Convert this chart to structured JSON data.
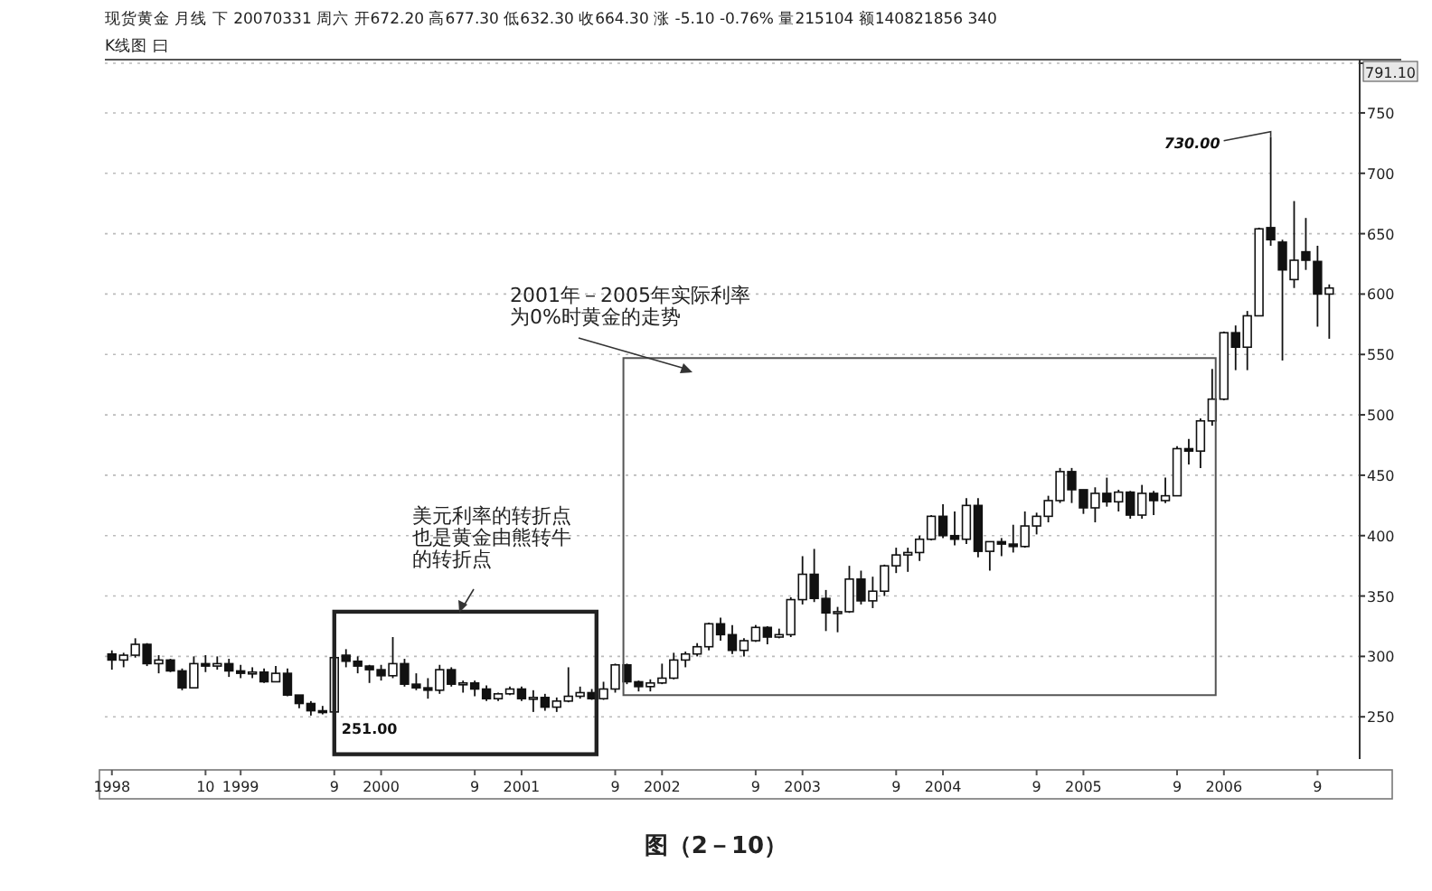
{
  "chart_data": {
    "type": "candlestick",
    "title": "现货黄金 月线 下 20070331 周六 开672.20 高677.30 低632.30 收664.30 涨 -5.10 -0.76% 量215104 额140821856 340",
    "subtitle": "K线图 曰",
    "categories": [
      "1998",
      null,
      null,
      null,
      null,
      null,
      null,
      null,
      "10",
      null,
      null,
      "1999",
      null,
      null,
      null,
      null,
      null,
      null,
      null,
      "9",
      null,
      null,
      null,
      "2000",
      null,
      null,
      null,
      null,
      null,
      null,
      null,
      "9",
      null,
      null,
      null,
      "2001",
      null,
      null,
      null,
      null,
      null,
      null,
      null,
      "9",
      null,
      null,
      null,
      "2002",
      null,
      null,
      null,
      null,
      null,
      null,
      null,
      "9",
      null,
      null,
      null,
      "2003",
      null,
      null,
      null,
      null,
      null,
      null,
      null,
      "9",
      null,
      null,
      null,
      "2004",
      null,
      null,
      null,
      null,
      null,
      null,
      null,
      "9",
      null,
      null,
      null,
      "2005",
      null,
      null,
      null,
      null,
      null,
      null,
      null,
      "9",
      null,
      null,
      null,
      "2006",
      null,
      null,
      null,
      null,
      null,
      null,
      null,
      "9",
      null
    ],
    "ohlc": [
      [
        302,
        305,
        289,
        297
      ],
      [
        297,
        303,
        291,
        301
      ],
      [
        301,
        315,
        299,
        310
      ],
      [
        310,
        311,
        292,
        294
      ],
      [
        294,
        301,
        286,
        297
      ],
      [
        297,
        298,
        287,
        288
      ],
      [
        288,
        290,
        272,
        274
      ],
      [
        274,
        300,
        274,
        294
      ],
      [
        294,
        301,
        287,
        292
      ],
      [
        292,
        300,
        289,
        294
      ],
      [
        294,
        298,
        283,
        288
      ],
      [
        288,
        293,
        282,
        286
      ],
      [
        286,
        291,
        282,
        287
      ],
      [
        287,
        290,
        278,
        279
      ],
      [
        279,
        292,
        279,
        286
      ],
      [
        286,
        290,
        267,
        268
      ],
      [
        268,
        268,
        257,
        261
      ],
      [
        261,
        263,
        251,
        255
      ],
      [
        255,
        259,
        252,
        254
      ],
      [
        254,
        328,
        253,
        299
      ],
      [
        301,
        306,
        291,
        296
      ],
      [
        296,
        300,
        286,
        292
      ],
      [
        292,
        293,
        278,
        289
      ],
      [
        289,
        293,
        280,
        284
      ],
      [
        284,
        316,
        282,
        294
      ],
      [
        294,
        298,
        275,
        277
      ],
      [
        277,
        286,
        272,
        274
      ],
      [
        274,
        282,
        265,
        272
      ],
      [
        272,
        293,
        269,
        289
      ],
      [
        289,
        291,
        275,
        277
      ],
      [
        277,
        280,
        270,
        278
      ],
      [
        278,
        280,
        267,
        273
      ],
      [
        273,
        276,
        263,
        265
      ],
      [
        265,
        270,
        263,
        269
      ],
      [
        269,
        275,
        268,
        273
      ],
      [
        273,
        275,
        263,
        265
      ],
      [
        265,
        272,
        254,
        266
      ],
      [
        266,
        269,
        255,
        258
      ],
      [
        258,
        266,
        254,
        263
      ],
      [
        263,
        291,
        262,
        267
      ],
      [
        267,
        275,
        265,
        270
      ],
      [
        270,
        273,
        264,
        265
      ],
      [
        265,
        279,
        264,
        273
      ],
      [
        273,
        294,
        270,
        293
      ],
      [
        293,
        294,
        277,
        279
      ],
      [
        279,
        280,
        271,
        275
      ],
      [
        275,
        281,
        271,
        278
      ],
      [
        278,
        294,
        277,
        282
      ],
      [
        282,
        303,
        281,
        297
      ],
      [
        297,
        304,
        291,
        302
      ],
      [
        302,
        311,
        300,
        308
      ],
      [
        308,
        328,
        305,
        327
      ],
      [
        327,
        332,
        313,
        318
      ],
      [
        318,
        326,
        302,
        305
      ],
      [
        305,
        315,
        300,
        313
      ],
      [
        313,
        326,
        312,
        324
      ],
      [
        324,
        325,
        310,
        316
      ],
      [
        316,
        323,
        315,
        318
      ],
      [
        318,
        349,
        316,
        347
      ],
      [
        347,
        383,
        343,
        368
      ],
      [
        368,
        389,
        345,
        348
      ],
      [
        348,
        355,
        321,
        336
      ],
      [
        336,
        341,
        320,
        337
      ],
      [
        337,
        375,
        336,
        364
      ],
      [
        364,
        371,
        343,
        346
      ],
      [
        346,
        366,
        340,
        354
      ],
      [
        354,
        376,
        350,
        375
      ],
      [
        375,
        390,
        369,
        384
      ],
      [
        384,
        390,
        370,
        386
      ],
      [
        386,
        400,
        379,
        397
      ],
      [
        397,
        417,
        396,
        416
      ],
      [
        416,
        426,
        398,
        400
      ],
      [
        400,
        420,
        392,
        397
      ],
      [
        397,
        431,
        393,
        425
      ],
      [
        425,
        431,
        382,
        387
      ],
      [
        387,
        395,
        371,
        395
      ],
      [
        395,
        398,
        383,
        393
      ],
      [
        393,
        409,
        386,
        391
      ],
      [
        391,
        420,
        390,
        408
      ],
      [
        408,
        419,
        401,
        416
      ],
      [
        416,
        433,
        411,
        429
      ],
      [
        429,
        456,
        427,
        453
      ],
      [
        453,
        456,
        427,
        438
      ],
      [
        438,
        438,
        418,
        423
      ],
      [
        423,
        440,
        411,
        435
      ],
      [
        435,
        448,
        424,
        428
      ],
      [
        428,
        438,
        420,
        436
      ],
      [
        436,
        437,
        414,
        417
      ],
      [
        417,
        442,
        414,
        435
      ],
      [
        435,
        437,
        417,
        429
      ],
      [
        429,
        448,
        427,
        433
      ],
      [
        433,
        474,
        433,
        472
      ],
      [
        472,
        480,
        459,
        470
      ],
      [
        470,
        497,
        456,
        495
      ],
      [
        495,
        538,
        491,
        513
      ],
      [
        513,
        569,
        512,
        568
      ],
      [
        568,
        574,
        537,
        556
      ],
      [
        556,
        586,
        537,
        582
      ],
      [
        582,
        655,
        582,
        654
      ],
      [
        655,
        730,
        640,
        645
      ],
      [
        643,
        645,
        545,
        620
      ],
      [
        612,
        677,
        605,
        628
      ],
      [
        635,
        663,
        620,
        628
      ],
      [
        627,
        640,
        573,
        600
      ],
      [
        600,
        608,
        563,
        605
      ]
    ],
    "ylim": [
      215,
      791.1
    ],
    "yticks": [
      250,
      300,
      350,
      400,
      450,
      500,
      550,
      600,
      650,
      700,
      750,
      {
        "value": 791.1,
        "label": "791.10"
      }
    ],
    "grid": "y",
    "annotations": [
      "251.00",
      "730.00",
      "美元利率的转折点也是黄金由熊转牛的转折点",
      "2001年－2005年实际利率为0%时黄金的走势",
      "图（2－10）"
    ]
  }
}
